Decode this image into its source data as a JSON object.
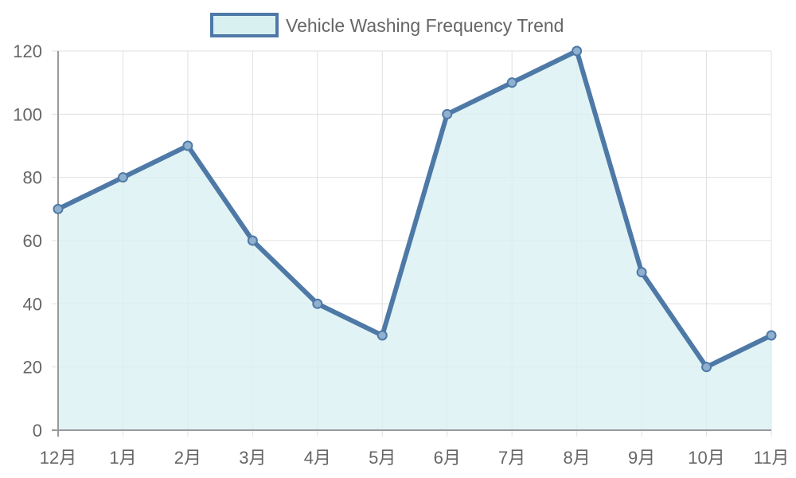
{
  "chart_data": {
    "type": "area",
    "title": "",
    "xlabel": "",
    "ylabel": "",
    "categories": [
      "12月",
      "1月",
      "2月",
      "3月",
      "4月",
      "5月",
      "6月",
      "7月",
      "8月",
      "9月",
      "10月",
      "11月"
    ],
    "series": [
      {
        "name": "Vehicle Washing Frequency Trend",
        "values": [
          70,
          80,
          90,
          60,
          40,
          30,
          100,
          110,
          120,
          50,
          20,
          30
        ],
        "line_color": "#4e79a7",
        "fill_color": "#d9f0f1"
      }
    ],
    "ylim": [
      0,
      120
    ],
    "yticks": [
      0,
      20,
      40,
      60,
      80,
      100,
      120
    ],
    "grid": true,
    "legend_position": "top"
  }
}
